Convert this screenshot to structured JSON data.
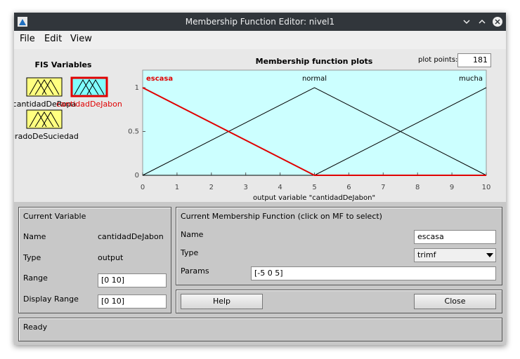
{
  "window": {
    "title": "Membership Function Editor: nivel1"
  },
  "menu": [
    "File",
    "Edit",
    "View"
  ],
  "fis_variables": {
    "title": "FIS Variables",
    "inputs": [
      "cantidadDeRopa",
      "gradoDeSuciedad"
    ],
    "outputs": [
      "cantidadDeJabon"
    ]
  },
  "plot_points": {
    "label": "plot points:",
    "value": 181
  },
  "chart_data": {
    "type": "line",
    "title": "Membership function plots",
    "x_label": "output variable \"cantidadDeJabon\"",
    "x": [
      0,
      5,
      10
    ],
    "series": [
      {
        "name": "escasa",
        "color": "#e00000",
        "values": [
          1,
          0,
          0
        ]
      },
      {
        "name": "normal",
        "color": "#000000",
        "values": [
          0,
          1,
          0
        ]
      },
      {
        "name": "mucha",
        "color": "#000000",
        "values": [
          0,
          0,
          1
        ]
      }
    ],
    "xlim": [
      0,
      10
    ],
    "ylim": [
      0,
      1.2
    ],
    "xticks": [
      0,
      1,
      2,
      3,
      4,
      5,
      6,
      7,
      8,
      9,
      10
    ],
    "yticks": [
      0,
      0.5,
      1
    ],
    "background": "#ccffff"
  },
  "current_variable": {
    "title": "Current Variable",
    "fields": [
      {
        "label": "Name",
        "value": "cantidadDeJabon"
      },
      {
        "label": "Type",
        "value": "output"
      },
      {
        "label": "Range",
        "value": "[0 10]"
      },
      {
        "label": "Display Range",
        "value": "[0 10]"
      }
    ]
  },
  "current_mf": {
    "title": "Current Membership Function (click on MF to select)",
    "fields": [
      {
        "label": "Name",
        "value": "escasa"
      },
      {
        "label": "Type",
        "value": "trimf"
      },
      {
        "label": "Params",
        "value": "[-5 0 5]"
      }
    ]
  },
  "buttons": [
    "Help",
    "Close"
  ],
  "status": "Ready"
}
